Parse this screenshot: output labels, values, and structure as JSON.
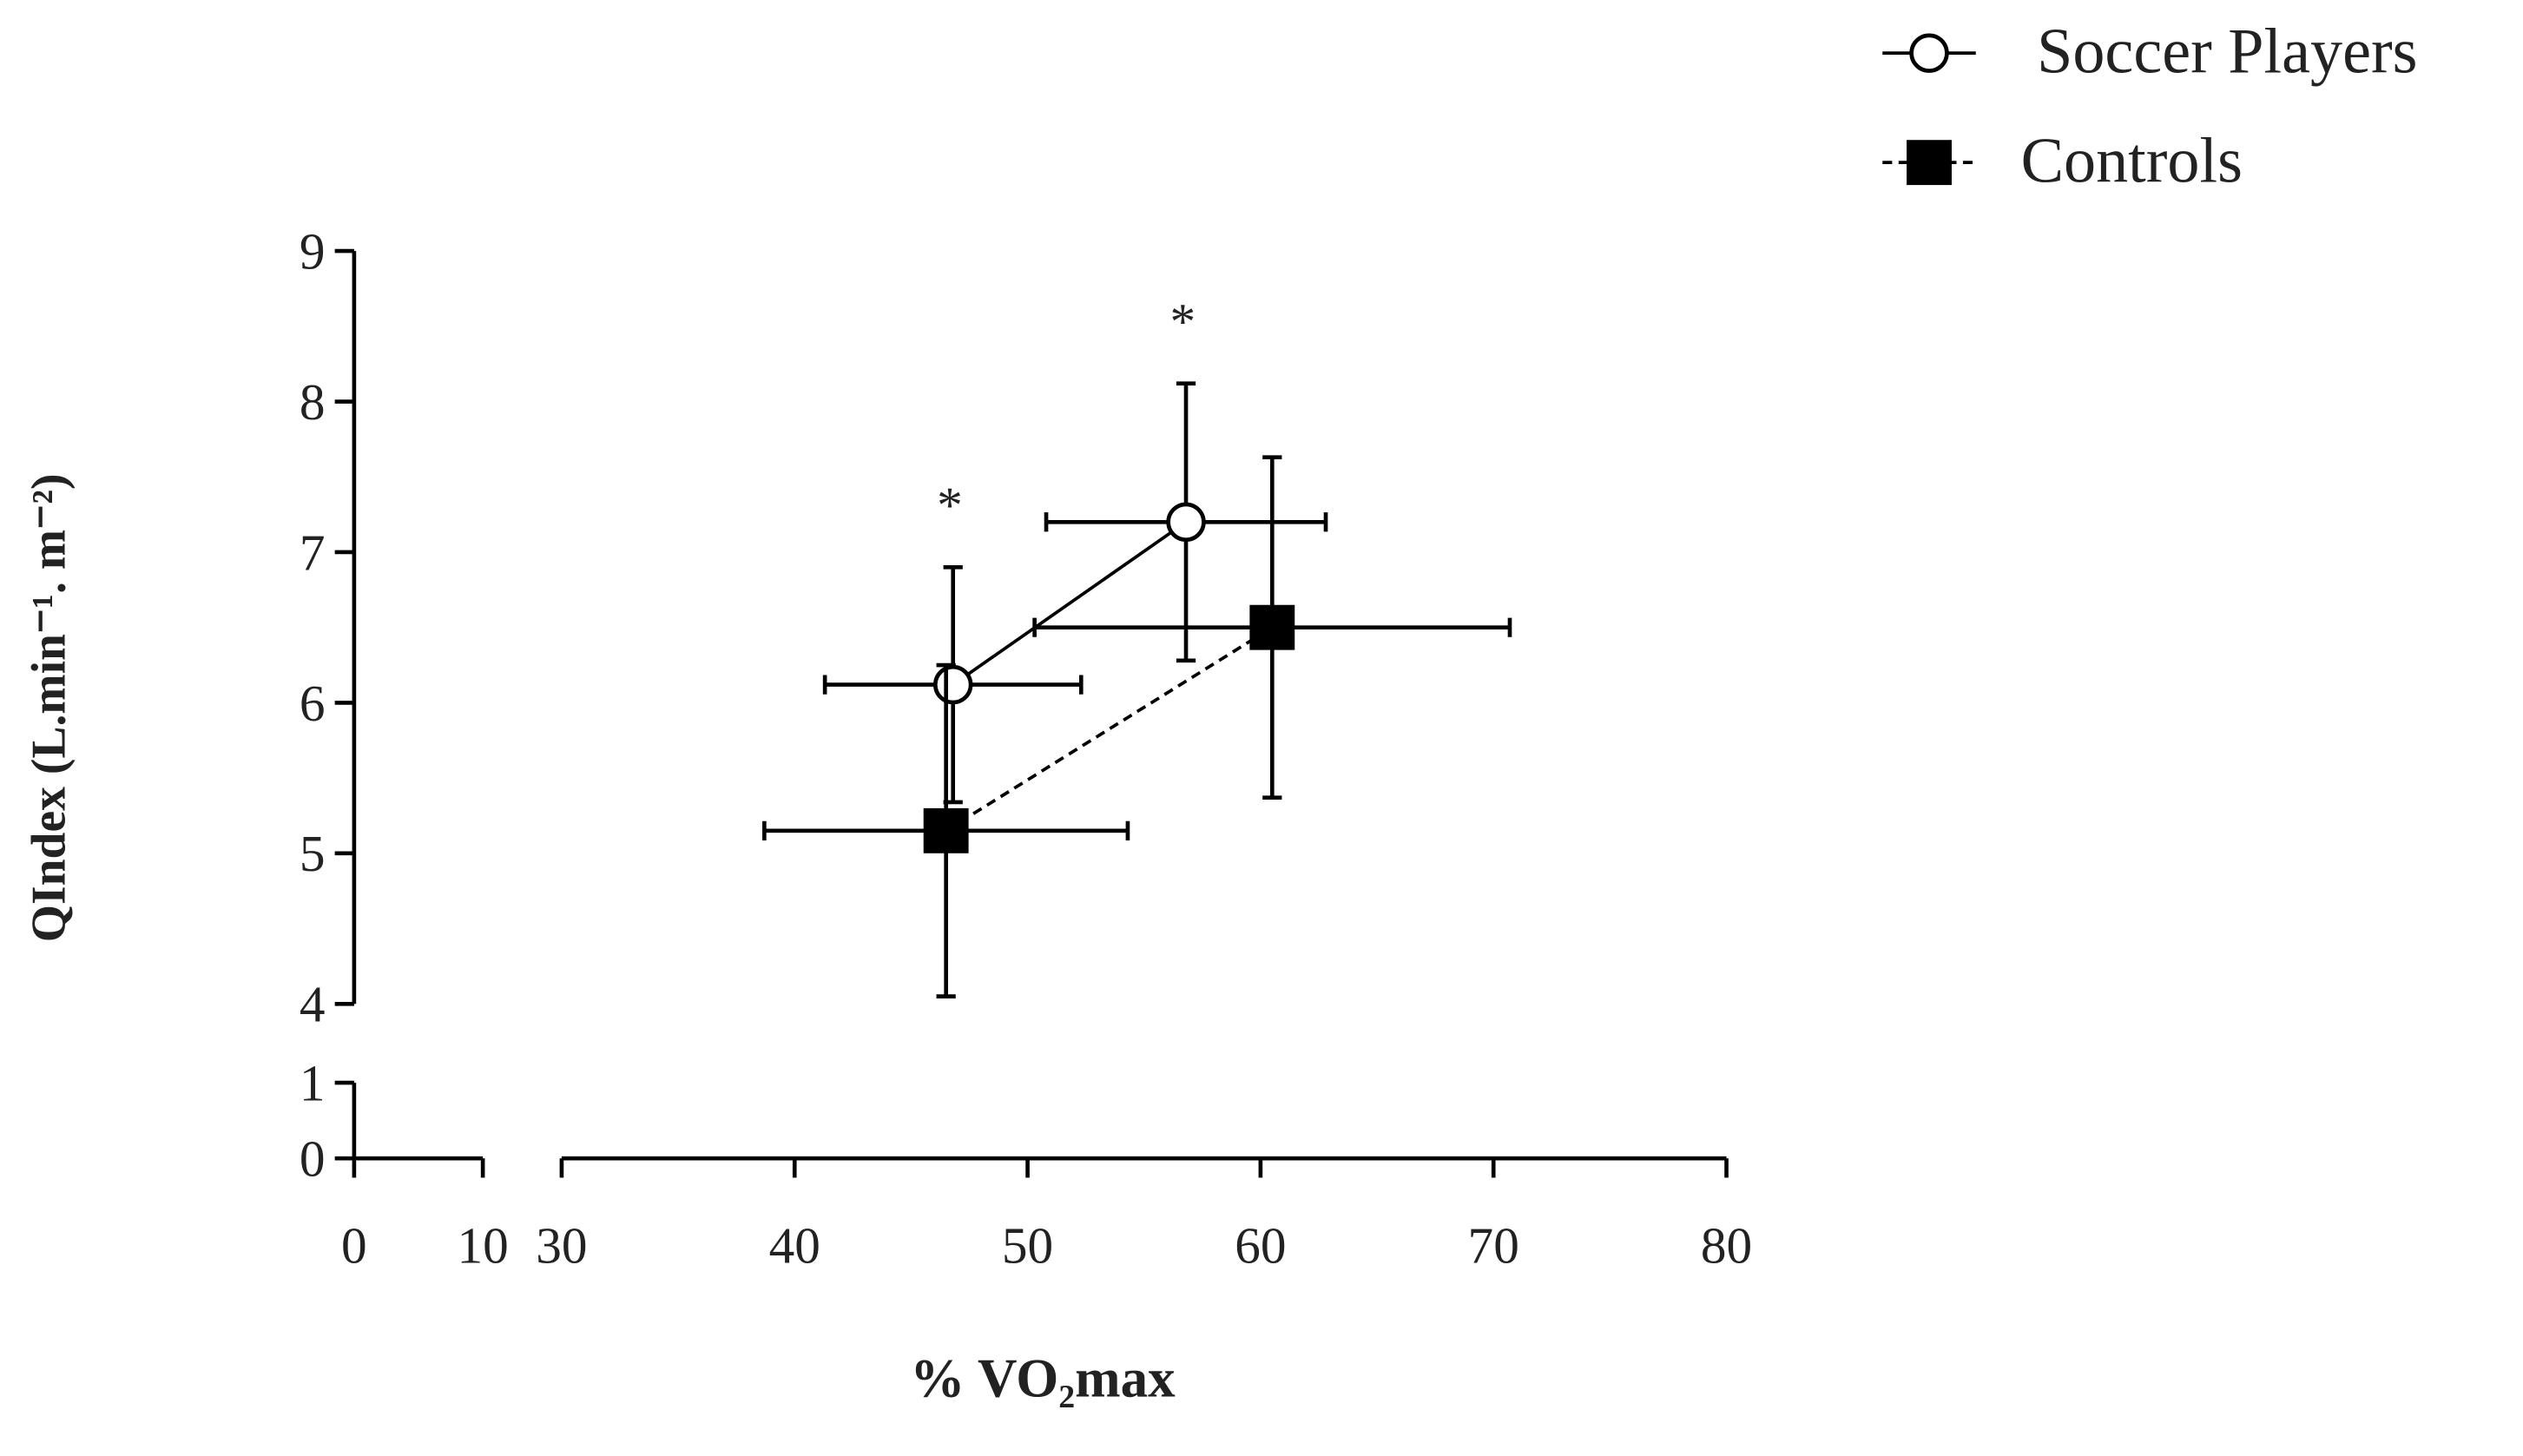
{
  "chart_data": {
    "type": "scatter",
    "y_label": "QIndex (L.min⁻¹. m⁻²)",
    "x_label": "% VO₂max",
    "xlim": [
      0,
      80
    ],
    "ylim": [
      0,
      9
    ],
    "x_segments": [
      [
        0,
        10
      ],
      [
        30,
        80
      ]
    ],
    "y_segments": [
      [
        0,
        1
      ],
      [
        4,
        9
      ]
    ],
    "xticks": [
      0,
      10,
      30,
      40,
      50,
      60,
      70,
      80
    ],
    "yticks": [
      0,
      1,
      4,
      5,
      6,
      7,
      8,
      9
    ],
    "legend": "top-right",
    "series": [
      {
        "name": "Soccer Players",
        "color": "#000000",
        "marker": "open-circle",
        "line": "solid",
        "x": [
          46.8,
          56.8
        ],
        "values": [
          6.12,
          7.2
        ],
        "x_errors": [
          5.5,
          6.0
        ],
        "y_errors": [
          0.78,
          0.92
        ]
      },
      {
        "name": "Controls",
        "color": "#000000",
        "marker": "filled-square",
        "line": "dashed",
        "x": [
          46.5,
          60.5
        ],
        "values": [
          5.15,
          6.5
        ],
        "x_errors": [
          7.8,
          10.2
        ],
        "y_errors": [
          1.1,
          1.13
        ]
      }
    ],
    "annotations": [
      {
        "text": "*",
        "series": 0,
        "point": 0
      },
      {
        "text": "*",
        "series": 0,
        "point": 1
      }
    ]
  }
}
